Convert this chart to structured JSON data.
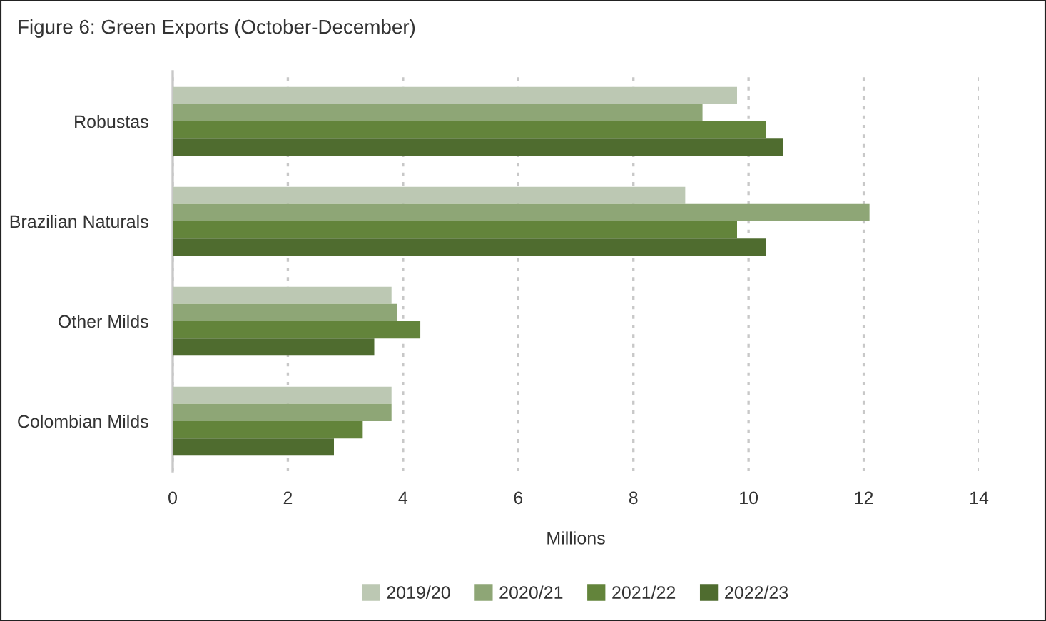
{
  "chart_data": {
    "type": "bar",
    "orientation": "horizontal",
    "title": "Figure 6: Green Exports (October-December)",
    "xlabel": "Millions",
    "categories": [
      "Robustas",
      "Brazilian Naturals",
      "Other Milds",
      "Colombian Milds"
    ],
    "series": [
      {
        "name": "2019/20",
        "color": "#bcc8b3",
        "values": [
          9.8,
          8.9,
          3.8,
          3.8
        ]
      },
      {
        "name": "2020/21",
        "color": "#8ea676",
        "values": [
          9.2,
          12.1,
          3.9,
          3.8
        ]
      },
      {
        "name": "2021/22",
        "color": "#63843b",
        "values": [
          10.3,
          9.8,
          4.3,
          3.3
        ]
      },
      {
        "name": "2022/23",
        "color": "#4f6c2f",
        "values": [
          10.6,
          10.3,
          3.5,
          2.8
        ]
      }
    ],
    "xlim": [
      0,
      14
    ],
    "xticks": [
      0,
      2,
      4,
      6,
      8,
      10,
      12,
      14
    ],
    "grid": "x",
    "legend": "bottom"
  }
}
